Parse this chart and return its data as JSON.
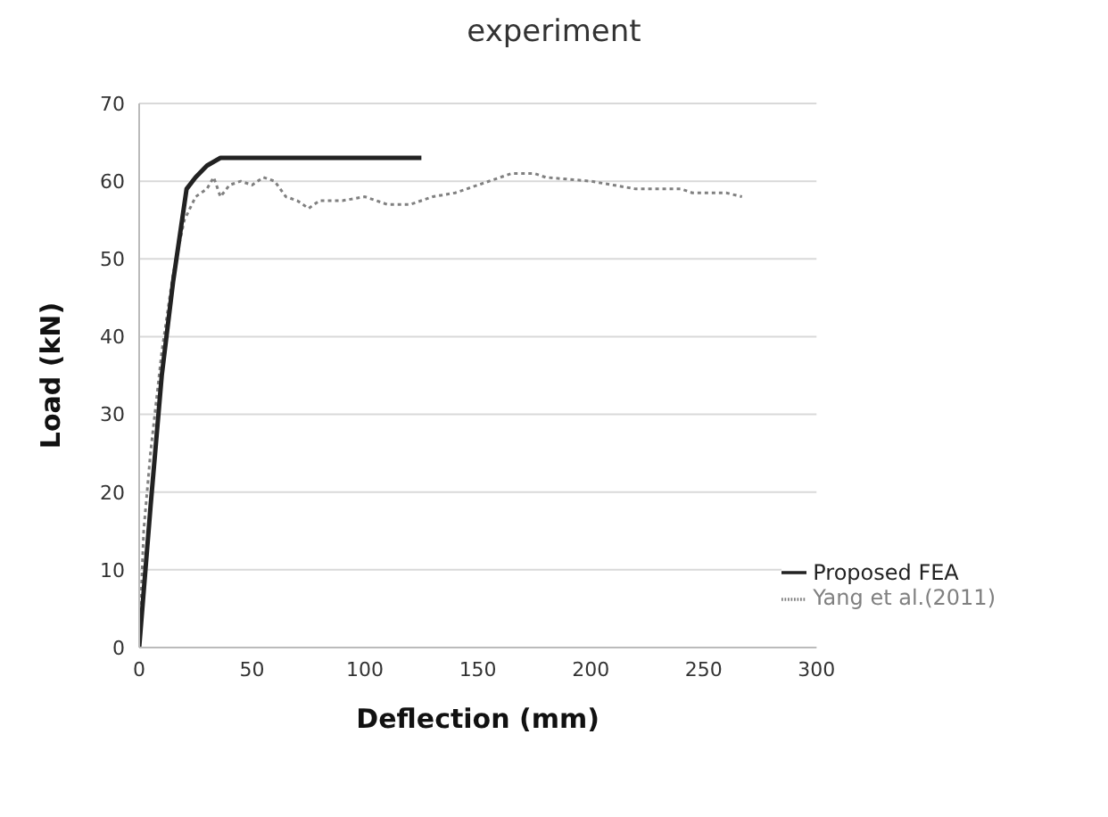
{
  "chart_data": {
    "type": "line",
    "title": "experiment",
    "xlabel": "Deflection (mm)",
    "ylabel": "Load (kN)",
    "xlim": [
      0,
      300
    ],
    "xticks": [
      0,
      50,
      100,
      150,
      200,
      250,
      300
    ],
    "ylim": [
      0,
      70
    ],
    "yticks": [
      0,
      10,
      20,
      30,
      40,
      50,
      60,
      70
    ],
    "grid": "y",
    "legend": "bottom right",
    "marker": "none",
    "series": [
      {
        "name": "Yang et al.(2011)",
        "color": "#808080",
        "line_style": "dotted",
        "x": [
          0,
          2,
          5,
          10,
          15,
          20,
          25,
          30,
          33,
          36,
          40,
          45,
          50,
          55,
          60,
          65,
          70,
          75,
          80,
          90,
          100,
          110,
          120,
          130,
          140,
          150,
          160,
          165,
          175,
          180,
          200,
          210,
          220,
          240,
          245,
          260,
          267
        ],
        "values": [
          0,
          15,
          25,
          38,
          48,
          55,
          58,
          59,
          60.5,
          58,
          59.5,
          60,
          59.5,
          60.5,
          60,
          58,
          57.5,
          56.5,
          57.5,
          57.5,
          58,
          57,
          57,
          58,
          58.5,
          59.5,
          60.5,
          61,
          61,
          60.5,
          60,
          59.5,
          59,
          59,
          58.5,
          58.5,
          58
        ]
      },
      {
        "name": "Proposed FEA",
        "color": "#222222",
        "line_style": "solid",
        "x": [
          0,
          5,
          10,
          15,
          21,
          25,
          30,
          36,
          125
        ],
        "values": [
          0,
          18,
          35,
          47,
          59,
          60.5,
          62,
          63,
          63
        ]
      }
    ]
  }
}
